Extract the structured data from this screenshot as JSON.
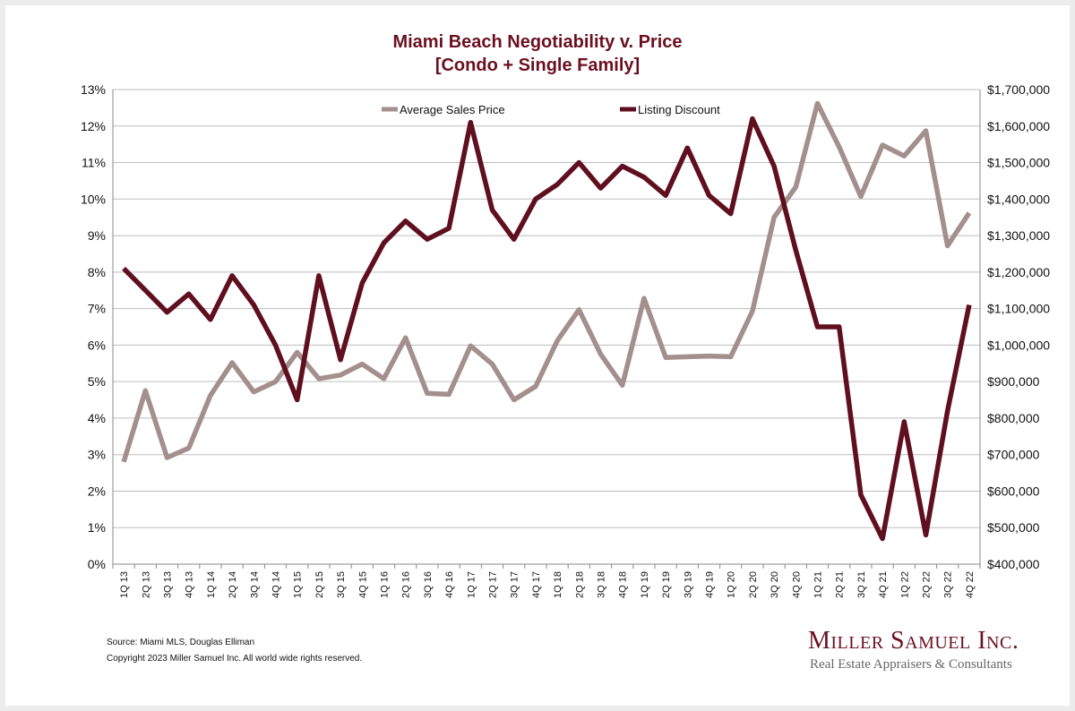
{
  "chart_data": {
    "type": "line",
    "title": "Miami Beach Negotiability v. Price",
    "subtitle": "[Condo + Single Family]",
    "categories": [
      "1Q 13",
      "2Q 13",
      "3Q 13",
      "4Q 13",
      "1Q 14",
      "2Q 14",
      "3Q 14",
      "4Q 14",
      "1Q 15",
      "2Q 15",
      "3Q 15",
      "4Q 15",
      "1Q 16",
      "2Q 16",
      "3Q 16",
      "4Q 16",
      "1Q 17",
      "2Q 17",
      "3Q 17",
      "4Q 17",
      "1Q 18",
      "2Q 18",
      "3Q 18",
      "4Q 18",
      "1Q 19",
      "2Q 19",
      "3Q 19",
      "4Q 19",
      "1Q 20",
      "2Q 20",
      "3Q 20",
      "4Q 20",
      "1Q 21",
      "2Q 21",
      "3Q 21",
      "4Q 21",
      "1Q 22",
      "2Q 22",
      "3Q 22",
      "4Q 22"
    ],
    "series": [
      {
        "name": "Average Sales Price",
        "axis": "right",
        "color": "#a38f8c",
        "values": [
          680000,
          875000,
          692000,
          718000,
          862000,
          952000,
          872000,
          900000,
          980000,
          908000,
          918000,
          948000,
          908000,
          1020000,
          868000,
          865000,
          998000,
          948000,
          850000,
          887000,
          1012000,
          1097000,
          975000,
          890000,
          1128000,
          966000,
          968000,
          970000,
          968000,
          1093000,
          1350000,
          1433000,
          1662000,
          1543000,
          1407000,
          1548000,
          1518000,
          1587000,
          1272000,
          1362000
        ]
      },
      {
        "name": "Listing Discount",
        "axis": "left",
        "color": "#5f0f1e",
        "values": [
          8.1,
          7.5,
          6.9,
          7.4,
          6.7,
          7.9,
          7.1,
          6.0,
          4.5,
          7.9,
          5.6,
          7.7,
          8.8,
          9.4,
          8.9,
          9.2,
          12.1,
          9.7,
          8.9,
          10.0,
          10.4,
          11.0,
          10.3,
          10.9,
          10.6,
          10.1,
          11.4,
          10.1,
          9.6,
          12.2,
          10.9,
          8.6,
          6.5,
          6.5,
          1.9,
          0.7,
          3.9,
          0.8,
          4.2,
          7.1
        ]
      }
    ],
    "y_left": {
      "min": 0,
      "max": 13,
      "step": 1,
      "ticks": [
        "0%",
        "1%",
        "2%",
        "3%",
        "4%",
        "5%",
        "6%",
        "7%",
        "8%",
        "9%",
        "10%",
        "11%",
        "12%",
        "13%"
      ]
    },
    "y_right": {
      "min": 400000,
      "max": 1700000,
      "step": 100000,
      "ticks": [
        "$400,000",
        "$500,000",
        "$600,000",
        "$700,000",
        "$800,000",
        "$900,000",
        "$1,000,000",
        "$1,100,000",
        "$1,200,000",
        "$1,300,000",
        "$1,400,000",
        "$1,500,000",
        "$1,600,000",
        "$1,700,000"
      ]
    },
    "grid": true,
    "legend": "top-center"
  },
  "footer": {
    "source": "Source: Miami MLS, Douglas Elliman",
    "copyright": "Copyright 2023 Miller Samuel Inc.  All world wide rights reserved."
  },
  "brand": {
    "name": "Miller Samuel Inc.",
    "tagline": "Real Estate Appraisers & Consultants"
  },
  "colors": {
    "title": "#6b1020",
    "grid": "#bdbdbd",
    "background": "#ffffff"
  }
}
